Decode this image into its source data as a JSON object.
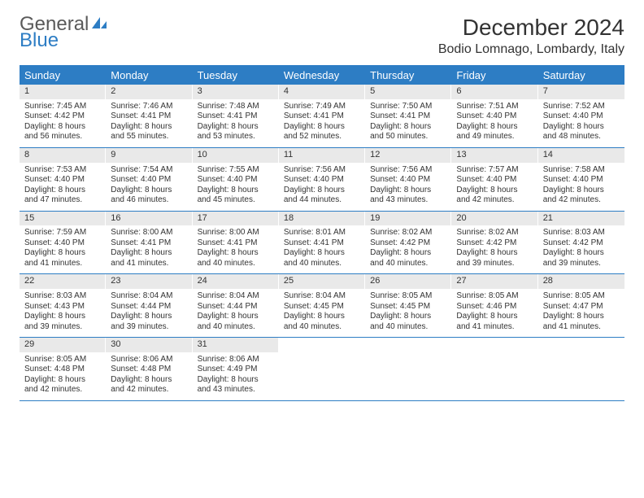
{
  "logo": {
    "text1": "General",
    "text2": "Blue"
  },
  "title": "December 2024",
  "location": "Bodio Lomnago, Lombardy, Italy",
  "dayNames": [
    "Sunday",
    "Monday",
    "Tuesday",
    "Wednesday",
    "Thursday",
    "Friday",
    "Saturday"
  ],
  "colors": {
    "headerBlue": "#2d7dc4",
    "dayNumBg": "#e9e9e9",
    "text": "#333333"
  },
  "weeks": [
    [
      {
        "n": "1",
        "sr": "7:45 AM",
        "ss": "4:42 PM",
        "dl": "8 hours and 56 minutes."
      },
      {
        "n": "2",
        "sr": "7:46 AM",
        "ss": "4:41 PM",
        "dl": "8 hours and 55 minutes."
      },
      {
        "n": "3",
        "sr": "7:48 AM",
        "ss": "4:41 PM",
        "dl": "8 hours and 53 minutes."
      },
      {
        "n": "4",
        "sr": "7:49 AM",
        "ss": "4:41 PM",
        "dl": "8 hours and 52 minutes."
      },
      {
        "n": "5",
        "sr": "7:50 AM",
        "ss": "4:41 PM",
        "dl": "8 hours and 50 minutes."
      },
      {
        "n": "6",
        "sr": "7:51 AM",
        "ss": "4:40 PM",
        "dl": "8 hours and 49 minutes."
      },
      {
        "n": "7",
        "sr": "7:52 AM",
        "ss": "4:40 PM",
        "dl": "8 hours and 48 minutes."
      }
    ],
    [
      {
        "n": "8",
        "sr": "7:53 AM",
        "ss": "4:40 PM",
        "dl": "8 hours and 47 minutes."
      },
      {
        "n": "9",
        "sr": "7:54 AM",
        "ss": "4:40 PM",
        "dl": "8 hours and 46 minutes."
      },
      {
        "n": "10",
        "sr": "7:55 AM",
        "ss": "4:40 PM",
        "dl": "8 hours and 45 minutes."
      },
      {
        "n": "11",
        "sr": "7:56 AM",
        "ss": "4:40 PM",
        "dl": "8 hours and 44 minutes."
      },
      {
        "n": "12",
        "sr": "7:56 AM",
        "ss": "4:40 PM",
        "dl": "8 hours and 43 minutes."
      },
      {
        "n": "13",
        "sr": "7:57 AM",
        "ss": "4:40 PM",
        "dl": "8 hours and 42 minutes."
      },
      {
        "n": "14",
        "sr": "7:58 AM",
        "ss": "4:40 PM",
        "dl": "8 hours and 42 minutes."
      }
    ],
    [
      {
        "n": "15",
        "sr": "7:59 AM",
        "ss": "4:40 PM",
        "dl": "8 hours and 41 minutes."
      },
      {
        "n": "16",
        "sr": "8:00 AM",
        "ss": "4:41 PM",
        "dl": "8 hours and 41 minutes."
      },
      {
        "n": "17",
        "sr": "8:00 AM",
        "ss": "4:41 PM",
        "dl": "8 hours and 40 minutes."
      },
      {
        "n": "18",
        "sr": "8:01 AM",
        "ss": "4:41 PM",
        "dl": "8 hours and 40 minutes."
      },
      {
        "n": "19",
        "sr": "8:02 AM",
        "ss": "4:42 PM",
        "dl": "8 hours and 40 minutes."
      },
      {
        "n": "20",
        "sr": "8:02 AM",
        "ss": "4:42 PM",
        "dl": "8 hours and 39 minutes."
      },
      {
        "n": "21",
        "sr": "8:03 AM",
        "ss": "4:42 PM",
        "dl": "8 hours and 39 minutes."
      }
    ],
    [
      {
        "n": "22",
        "sr": "8:03 AM",
        "ss": "4:43 PM",
        "dl": "8 hours and 39 minutes."
      },
      {
        "n": "23",
        "sr": "8:04 AM",
        "ss": "4:44 PM",
        "dl": "8 hours and 39 minutes."
      },
      {
        "n": "24",
        "sr": "8:04 AM",
        "ss": "4:44 PM",
        "dl": "8 hours and 40 minutes."
      },
      {
        "n": "25",
        "sr": "8:04 AM",
        "ss": "4:45 PM",
        "dl": "8 hours and 40 minutes."
      },
      {
        "n": "26",
        "sr": "8:05 AM",
        "ss": "4:45 PM",
        "dl": "8 hours and 40 minutes."
      },
      {
        "n": "27",
        "sr": "8:05 AM",
        "ss": "4:46 PM",
        "dl": "8 hours and 41 minutes."
      },
      {
        "n": "28",
        "sr": "8:05 AM",
        "ss": "4:47 PM",
        "dl": "8 hours and 41 minutes."
      }
    ],
    [
      {
        "n": "29",
        "sr": "8:05 AM",
        "ss": "4:48 PM",
        "dl": "8 hours and 42 minutes."
      },
      {
        "n": "30",
        "sr": "8:06 AM",
        "ss": "4:48 PM",
        "dl": "8 hours and 42 minutes."
      },
      {
        "n": "31",
        "sr": "8:06 AM",
        "ss": "4:49 PM",
        "dl": "8 hours and 43 minutes."
      },
      null,
      null,
      null,
      null
    ]
  ],
  "labels": {
    "sunrise": "Sunrise:",
    "sunset": "Sunset:",
    "daylight": "Daylight:"
  }
}
